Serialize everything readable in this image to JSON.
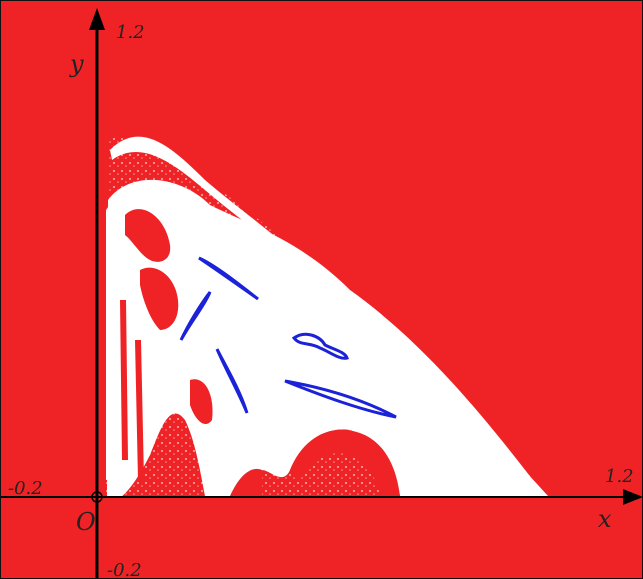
{
  "figure": {
    "colors": {
      "background": "#ef2326",
      "basin": "#ffffff",
      "attractor": "#1b22d8",
      "axis": "#000000",
      "frame": "#111111"
    },
    "axes": {
      "x_label": "x",
      "y_label": "y",
      "origin_label": "O",
      "x_tick_max": "1.2",
      "x_tick_min": "-0.2",
      "y_tick_max": "1.2",
      "y_tick_min": "-0.2",
      "x_range": [
        -0.2,
        1.2
      ],
      "y_range": [
        -0.2,
        1.2
      ]
    }
  }
}
